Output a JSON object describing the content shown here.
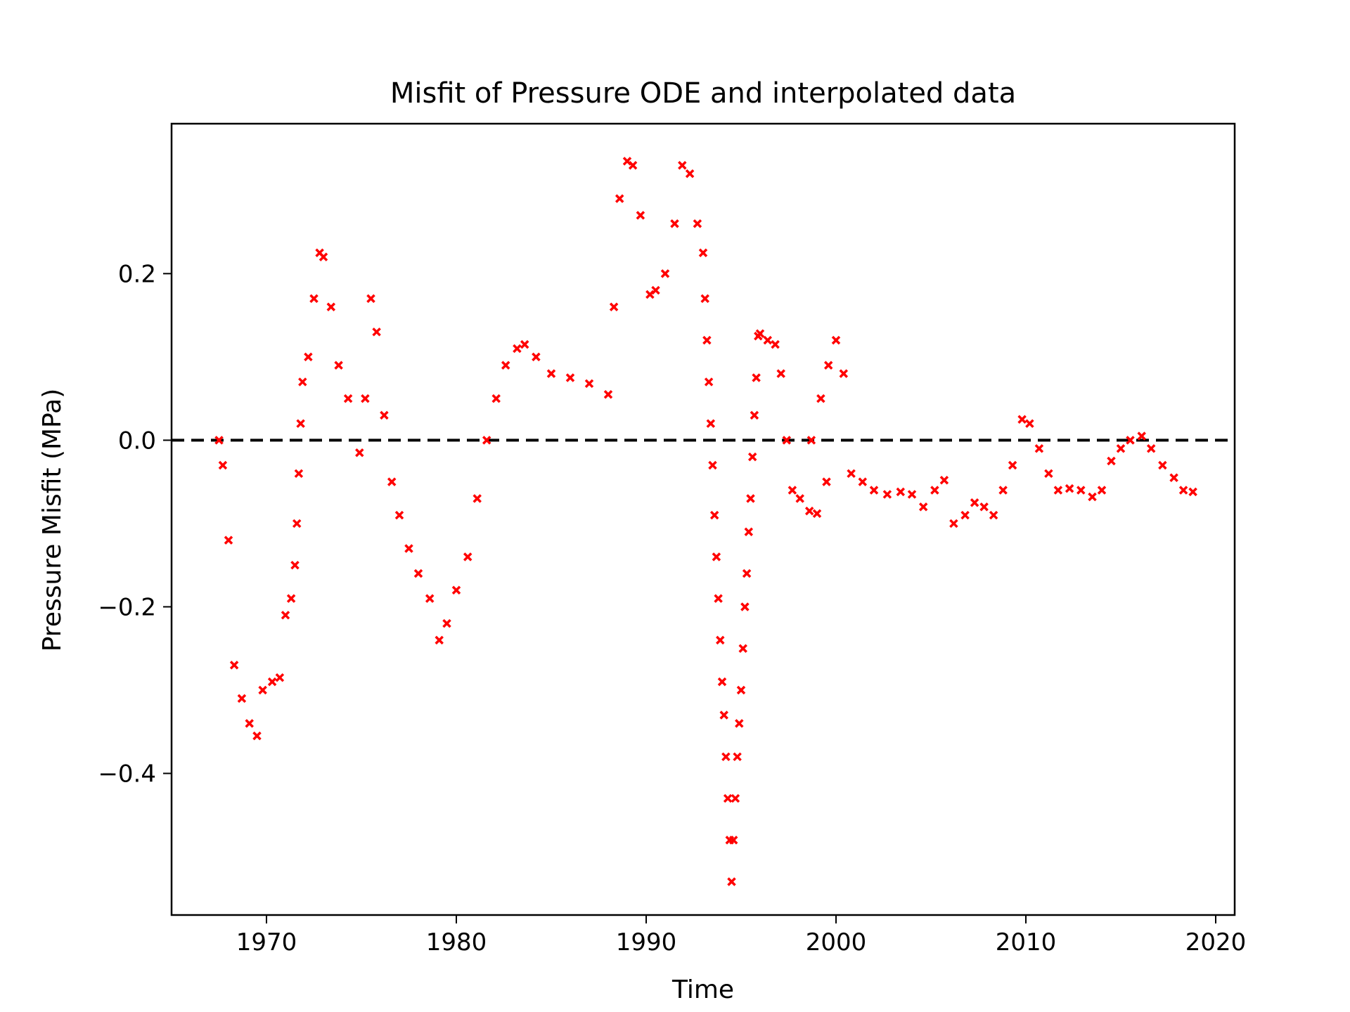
{
  "chart_data": {
    "type": "scatter",
    "title": "Misfit of Pressure ODE and interpolated data",
    "xlabel": "Time",
    "ylabel": "Pressure Misfit (MPa)",
    "xlim": [
      1965,
      2021
    ],
    "ylim": [
      -0.57,
      0.38
    ],
    "x_ticks": [
      1970,
      1980,
      1990,
      2000,
      2010,
      2020
    ],
    "y_ticks": [
      0.2,
      0.0,
      -0.2,
      -0.4
    ],
    "x_tick_labels": [
      "1970",
      "1980",
      "1990",
      "2000",
      "2010",
      "2020"
    ],
    "y_tick_labels": [
      "0.2",
      "0.0",
      "−0.2",
      "−0.4"
    ],
    "reference_line": {
      "y": 0.0,
      "style": "dashed",
      "color": "#000000"
    },
    "marker": "x",
    "grid": false,
    "series": [
      {
        "color": "#ff0000",
        "points": [
          [
            1967.5,
            0.0
          ],
          [
            1967.7,
            -0.03
          ],
          [
            1968.0,
            -0.12
          ],
          [
            1968.3,
            -0.27
          ],
          [
            1968.7,
            -0.31
          ],
          [
            1969.1,
            -0.34
          ],
          [
            1969.5,
            -0.355
          ],
          [
            1969.8,
            -0.3
          ],
          [
            1970.3,
            -0.29
          ],
          [
            1970.7,
            -0.285
          ],
          [
            1971.0,
            -0.21
          ],
          [
            1971.3,
            -0.19
          ],
          [
            1971.5,
            -0.15
          ],
          [
            1971.6,
            -0.1
          ],
          [
            1971.7,
            -0.04
          ],
          [
            1971.8,
            0.02
          ],
          [
            1971.9,
            0.07
          ],
          [
            1972.2,
            0.1
          ],
          [
            1972.5,
            0.17
          ],
          [
            1972.8,
            0.225
          ],
          [
            1973.0,
            0.22
          ],
          [
            1973.4,
            0.16
          ],
          [
            1973.8,
            0.09
          ],
          [
            1974.3,
            0.05
          ],
          [
            1974.9,
            -0.015
          ],
          [
            1975.2,
            0.05
          ],
          [
            1975.5,
            0.17
          ],
          [
            1975.8,
            0.13
          ],
          [
            1976.2,
            0.03
          ],
          [
            1976.6,
            -0.05
          ],
          [
            1977.0,
            -0.09
          ],
          [
            1977.5,
            -0.13
          ],
          [
            1978.0,
            -0.16
          ],
          [
            1978.6,
            -0.19
          ],
          [
            1979.1,
            -0.24
          ],
          [
            1979.5,
            -0.22
          ],
          [
            1980.0,
            -0.18
          ],
          [
            1980.6,
            -0.14
          ],
          [
            1981.1,
            -0.07
          ],
          [
            1981.6,
            0.0
          ],
          [
            1982.1,
            0.05
          ],
          [
            1982.6,
            0.09
          ],
          [
            1983.2,
            0.11
          ],
          [
            1983.6,
            0.115
          ],
          [
            1984.2,
            0.1
          ],
          [
            1985.0,
            0.08
          ],
          [
            1986.0,
            0.075
          ],
          [
            1987.0,
            0.068
          ],
          [
            1988.0,
            0.055
          ],
          [
            1988.3,
            0.16
          ],
          [
            1988.6,
            0.29
          ],
          [
            1989.0,
            0.335
          ],
          [
            1989.3,
            0.33
          ],
          [
            1989.7,
            0.27
          ],
          [
            1990.2,
            0.175
          ],
          [
            1990.5,
            0.18
          ],
          [
            1991.0,
            0.2
          ],
          [
            1991.5,
            0.26
          ],
          [
            1991.9,
            0.33
          ],
          [
            1992.3,
            0.32
          ],
          [
            1992.7,
            0.26
          ],
          [
            1993.0,
            0.225
          ],
          [
            1993.1,
            0.17
          ],
          [
            1993.2,
            0.12
          ],
          [
            1993.3,
            0.07
          ],
          [
            1993.4,
            0.02
          ],
          [
            1993.5,
            -0.03
          ],
          [
            1993.6,
            -0.09
          ],
          [
            1993.7,
            -0.14
          ],
          [
            1993.8,
            -0.19
          ],
          [
            1993.9,
            -0.24
          ],
          [
            1994.0,
            -0.29
          ],
          [
            1994.1,
            -0.33
          ],
          [
            1994.2,
            -0.38
          ],
          [
            1994.3,
            -0.43
          ],
          [
            1994.4,
            -0.48
          ],
          [
            1994.5,
            -0.53
          ],
          [
            1994.6,
            -0.48
          ],
          [
            1994.7,
            -0.43
          ],
          [
            1994.8,
            -0.38
          ],
          [
            1994.9,
            -0.34
          ],
          [
            1995.0,
            -0.3
          ],
          [
            1995.1,
            -0.25
          ],
          [
            1995.2,
            -0.2
          ],
          [
            1995.3,
            -0.16
          ],
          [
            1995.4,
            -0.11
          ],
          [
            1995.5,
            -0.07
          ],
          [
            1995.6,
            -0.02
          ],
          [
            1995.7,
            0.03
          ],
          [
            1995.8,
            0.075
          ],
          [
            1995.9,
            0.125
          ],
          [
            1996.0,
            0.128
          ],
          [
            1996.4,
            0.12
          ],
          [
            1996.8,
            0.115
          ],
          [
            1997.1,
            0.08
          ],
          [
            1997.4,
            0.0
          ],
          [
            1997.7,
            -0.06
          ],
          [
            1998.1,
            -0.07
          ],
          [
            1998.6,
            -0.085
          ],
          [
            1999.0,
            -0.088
          ],
          [
            1999.5,
            -0.05
          ],
          [
            1998.7,
            0.0
          ],
          [
            1999.2,
            0.05
          ],
          [
            1999.6,
            0.09
          ],
          [
            2000.0,
            0.12
          ],
          [
            2000.4,
            0.08
          ],
          [
            2000.8,
            -0.04
          ],
          [
            2001.4,
            -0.05
          ],
          [
            2002.0,
            -0.06
          ],
          [
            2002.7,
            -0.065
          ],
          [
            2003.4,
            -0.062
          ],
          [
            2004.0,
            -0.065
          ],
          [
            2004.6,
            -0.08
          ],
          [
            2005.2,
            -0.06
          ],
          [
            2005.7,
            -0.048
          ],
          [
            2006.2,
            -0.1
          ],
          [
            2006.8,
            -0.09
          ],
          [
            2007.3,
            -0.075
          ],
          [
            2007.8,
            -0.08
          ],
          [
            2008.3,
            -0.09
          ],
          [
            2008.8,
            -0.06
          ],
          [
            2009.3,
            -0.03
          ],
          [
            2009.8,
            0.025
          ],
          [
            2010.2,
            0.02
          ],
          [
            2010.7,
            -0.01
          ],
          [
            2011.2,
            -0.04
          ],
          [
            2011.7,
            -0.06
          ],
          [
            2012.3,
            -0.058
          ],
          [
            2012.9,
            -0.06
          ],
          [
            2013.5,
            -0.068
          ],
          [
            2014.0,
            -0.06
          ],
          [
            2014.5,
            -0.025
          ],
          [
            2015.0,
            -0.01
          ],
          [
            2015.5,
            0.0
          ],
          [
            2016.1,
            0.005
          ],
          [
            2016.6,
            -0.01
          ],
          [
            2017.2,
            -0.03
          ],
          [
            2017.8,
            -0.045
          ],
          [
            2018.3,
            -0.06
          ],
          [
            2018.8,
            -0.062
          ]
        ]
      }
    ]
  }
}
